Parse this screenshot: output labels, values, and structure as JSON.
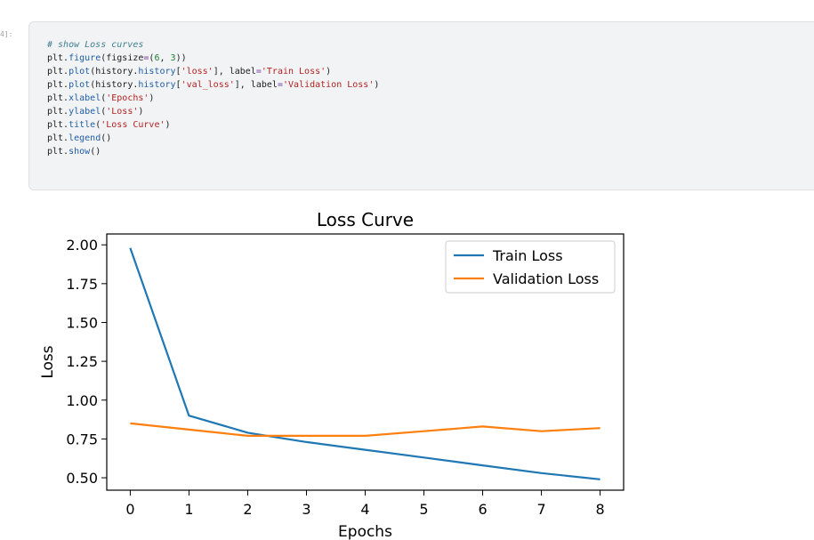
{
  "cell": {
    "prompt": "4]:",
    "code_lines": [
      [
        {
          "t": "# show Loss curves",
          "c": "comment"
        }
      ],
      [
        {
          "t": "plt.",
          "c": "plain"
        },
        {
          "t": "figure",
          "c": "func"
        },
        {
          "t": "(figsize",
          "c": "plain"
        },
        {
          "t": "=",
          "c": "op"
        },
        {
          "t": "(",
          "c": "plain"
        },
        {
          "t": "6",
          "c": "num"
        },
        {
          "t": ", ",
          "c": "plain"
        },
        {
          "t": "3",
          "c": "num"
        },
        {
          "t": "))",
          "c": "plain"
        }
      ],
      [
        {
          "t": "plt.",
          "c": "plain"
        },
        {
          "t": "plot",
          "c": "func"
        },
        {
          "t": "(history.",
          "c": "plain"
        },
        {
          "t": "history",
          "c": "func"
        },
        {
          "t": "[",
          "c": "plain"
        },
        {
          "t": "'loss'",
          "c": "str"
        },
        {
          "t": "], label",
          "c": "plain"
        },
        {
          "t": "=",
          "c": "op"
        },
        {
          "t": "'Train Loss'",
          "c": "str"
        },
        {
          "t": ")",
          "c": "plain"
        }
      ],
      [
        {
          "t": "plt.",
          "c": "plain"
        },
        {
          "t": "plot",
          "c": "func"
        },
        {
          "t": "(history.",
          "c": "plain"
        },
        {
          "t": "history",
          "c": "func"
        },
        {
          "t": "[",
          "c": "plain"
        },
        {
          "t": "'val_loss'",
          "c": "str"
        },
        {
          "t": "], label",
          "c": "plain"
        },
        {
          "t": "=",
          "c": "op"
        },
        {
          "t": "'Validation Loss'",
          "c": "str"
        },
        {
          "t": ")",
          "c": "plain"
        }
      ],
      [
        {
          "t": "plt.",
          "c": "plain"
        },
        {
          "t": "xlabel",
          "c": "func"
        },
        {
          "t": "(",
          "c": "plain"
        },
        {
          "t": "'Epochs'",
          "c": "str"
        },
        {
          "t": ")",
          "c": "plain"
        }
      ],
      [
        {
          "t": "plt.",
          "c": "plain"
        },
        {
          "t": "ylabel",
          "c": "func"
        },
        {
          "t": "(",
          "c": "plain"
        },
        {
          "t": "'Loss'",
          "c": "str"
        },
        {
          "t": ")",
          "c": "plain"
        }
      ],
      [
        {
          "t": "plt.",
          "c": "plain"
        },
        {
          "t": "title",
          "c": "func"
        },
        {
          "t": "(",
          "c": "plain"
        },
        {
          "t": "'Loss Curve'",
          "c": "str"
        },
        {
          "t": ")",
          "c": "plain"
        }
      ],
      [
        {
          "t": "plt.",
          "c": "plain"
        },
        {
          "t": "legend",
          "c": "func"
        },
        {
          "t": "()",
          "c": "plain"
        }
      ],
      [
        {
          "t": "plt.",
          "c": "plain"
        },
        {
          "t": "show",
          "c": "func"
        },
        {
          "t": "()",
          "c": "plain"
        }
      ]
    ]
  },
  "chart_data": {
    "type": "line",
    "title": "Loss Curve",
    "xlabel": "Epochs",
    "ylabel": "Loss",
    "x": [
      0,
      1,
      2,
      3,
      4,
      5,
      6,
      7,
      8
    ],
    "xticks": [
      "0",
      "1",
      "2",
      "3",
      "4",
      "5",
      "6",
      "7",
      "8"
    ],
    "yticks": [
      0.5,
      0.75,
      1.0,
      1.25,
      1.5,
      1.75,
      2.0
    ],
    "ytick_labels": [
      "0.50",
      "0.75",
      "1.00",
      "1.25",
      "1.50",
      "1.75",
      "2.00"
    ],
    "xlim": [
      -0.4,
      8.4
    ],
    "ylim": [
      0.42,
      2.07
    ],
    "legend_position": "top-right",
    "grid": false,
    "series": [
      {
        "name": "Train Loss",
        "color": "#1f77b4",
        "values": [
          1.98,
          0.9,
          0.79,
          0.73,
          0.68,
          0.63,
          0.58,
          0.53,
          0.49
        ]
      },
      {
        "name": "Validation Loss",
        "color": "#ff7f0e",
        "values": [
          0.85,
          0.81,
          0.77,
          0.77,
          0.77,
          0.8,
          0.83,
          0.8,
          0.82
        ]
      }
    ]
  }
}
